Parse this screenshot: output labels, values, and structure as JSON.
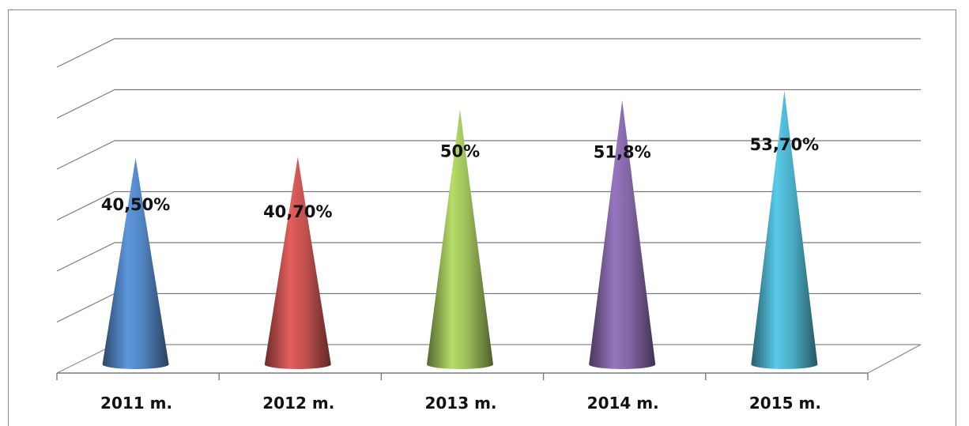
{
  "chart_data": {
    "type": "bar",
    "shape": "cone-3d",
    "categories": [
      "2011 m.",
      "2012 m.",
      "2013 m.",
      "2014 m.",
      "2015 m."
    ],
    "values": [
      40.5,
      40.7,
      50,
      51.8,
      53.7
    ],
    "data_labels": [
      "40,50%",
      "40,70%",
      "50%",
      "51,8%",
      "53,70%"
    ],
    "colors": [
      "#4f81bd",
      "#c0504d",
      "#9bbb59",
      "#8064a2",
      "#4bacc6"
    ],
    "title": "",
    "xlabel": "",
    "ylabel": "",
    "ylim": [
      0,
      60
    ],
    "grid": true,
    "legend": "none"
  }
}
